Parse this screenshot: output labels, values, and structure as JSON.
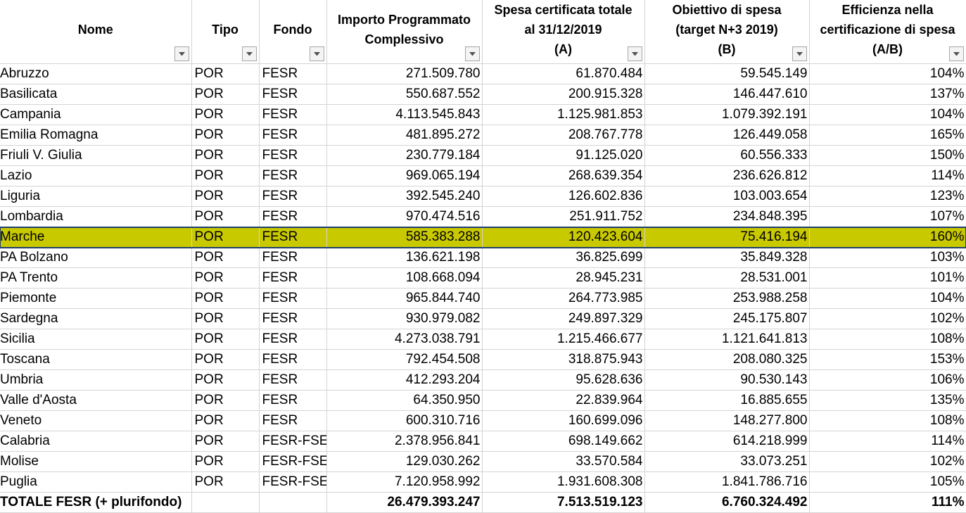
{
  "headers": {
    "nome": "Nome",
    "tipo": "Tipo",
    "fondo": "Fondo",
    "importo": "Importo Programmato\nComplessivo",
    "spesa": "Spesa certificata totale\nal 31/12/2019\n(A)",
    "obiettivo": "Obiettivo di spesa\n(target N+3 2019)\n(B)",
    "efficienza": "Efficienza nella\ncertificazione di spesa\n(A/B)"
  },
  "filter_icon": "dropdown-arrow-icon",
  "highlight_color": "#c9c900",
  "rows": [
    {
      "nome": "Abruzzo",
      "tipo": "POR",
      "fondo": "FESR",
      "importo": "271.509.780",
      "spesa": "61.870.484",
      "obiettivo": "59.545.149",
      "efficienza": "104%"
    },
    {
      "nome": "Basilicata",
      "tipo": "POR",
      "fondo": "FESR",
      "importo": "550.687.552",
      "spesa": "200.915.328",
      "obiettivo": "146.447.610",
      "efficienza": "137%"
    },
    {
      "nome": "Campania",
      "tipo": "POR",
      "fondo": "FESR",
      "importo": "4.113.545.843",
      "spesa": "1.125.981.853",
      "obiettivo": "1.079.392.191",
      "efficienza": "104%"
    },
    {
      "nome": "Emilia Romagna",
      "tipo": "POR",
      "fondo": "FESR",
      "importo": "481.895.272",
      "spesa": "208.767.778",
      "obiettivo": "126.449.058",
      "efficienza": "165%"
    },
    {
      "nome": "Friuli V. Giulia",
      "tipo": "POR",
      "fondo": "FESR",
      "importo": "230.779.184",
      "spesa": "91.125.020",
      "obiettivo": "60.556.333",
      "efficienza": "150%"
    },
    {
      "nome": "Lazio",
      "tipo": "POR",
      "fondo": "FESR",
      "importo": "969.065.194",
      "spesa": "268.639.354",
      "obiettivo": "236.626.812",
      "efficienza": "114%"
    },
    {
      "nome": "Liguria",
      "tipo": "POR",
      "fondo": "FESR",
      "importo": "392.545.240",
      "spesa": "126.602.836",
      "obiettivo": "103.003.654",
      "efficienza": "123%"
    },
    {
      "nome": "Lombardia",
      "tipo": "POR",
      "fondo": "FESR",
      "importo": "970.474.516",
      "spesa": "251.911.752",
      "obiettivo": "234.848.395",
      "efficienza": "107%"
    },
    {
      "nome": "Marche",
      "tipo": "POR",
      "fondo": "FESR",
      "importo": "585.383.288",
      "spesa": "120.423.604",
      "obiettivo": "75.416.194",
      "efficienza": "160%",
      "highlight": true
    },
    {
      "nome": "PA Bolzano",
      "tipo": "POR",
      "fondo": "FESR",
      "importo": "136.621.198",
      "spesa": "36.825.699",
      "obiettivo": "35.849.328",
      "efficienza": "103%"
    },
    {
      "nome": "PA Trento",
      "tipo": "POR",
      "fondo": "FESR",
      "importo": "108.668.094",
      "spesa": "28.945.231",
      "obiettivo": "28.531.001",
      "efficienza": "101%"
    },
    {
      "nome": "Piemonte",
      "tipo": "POR",
      "fondo": "FESR",
      "importo": "965.844.740",
      "spesa": "264.773.985",
      "obiettivo": "253.988.258",
      "efficienza": "104%"
    },
    {
      "nome": "Sardegna",
      "tipo": "POR",
      "fondo": "FESR",
      "importo": "930.979.082",
      "spesa": "249.897.329",
      "obiettivo": "245.175.807",
      "efficienza": "102%"
    },
    {
      "nome": "Sicilia",
      "tipo": "POR",
      "fondo": "FESR",
      "importo": "4.273.038.791",
      "spesa": "1.215.466.677",
      "obiettivo": "1.121.641.813",
      "efficienza": "108%"
    },
    {
      "nome": "Toscana",
      "tipo": "POR",
      "fondo": "FESR",
      "importo": "792.454.508",
      "spesa": "318.875.943",
      "obiettivo": "208.080.325",
      "efficienza": "153%"
    },
    {
      "nome": "Umbria",
      "tipo": "POR",
      "fondo": "FESR",
      "importo": "412.293.204",
      "spesa": "95.628.636",
      "obiettivo": "90.530.143",
      "efficienza": "106%"
    },
    {
      "nome": "Valle d'Aosta",
      "tipo": "POR",
      "fondo": "FESR",
      "importo": "64.350.950",
      "spesa": "22.839.964",
      "obiettivo": "16.885.655",
      "efficienza": "135%"
    },
    {
      "nome": "Veneto",
      "tipo": "POR",
      "fondo": "FESR",
      "importo": "600.310.716",
      "spesa": "160.699.096",
      "obiettivo": "148.277.800",
      "efficienza": "108%"
    },
    {
      "nome": "Calabria",
      "tipo": "POR",
      "fondo": "FESR-FSE",
      "importo": "2.378.956.841",
      "spesa": "698.149.662",
      "obiettivo": "614.218.999",
      "efficienza": "114%"
    },
    {
      "nome": "Molise",
      "tipo": "POR",
      "fondo": "FESR-FSE",
      "importo": "129.030.262",
      "spesa": "33.570.584",
      "obiettivo": "33.073.251",
      "efficienza": "102%"
    },
    {
      "nome": "Puglia",
      "tipo": "POR",
      "fondo": "FESR-FSE",
      "importo": "7.120.958.992",
      "spesa": "1.931.608.308",
      "obiettivo": "1.841.786.716",
      "efficienza": "105%"
    }
  ],
  "total": {
    "nome": "TOTALE FESR (+ plurifondo)",
    "tipo": "",
    "fondo": "",
    "importo": "26.479.393.247",
    "spesa": "7.513.519.123",
    "obiettivo": "6.760.324.492",
    "efficienza": "111%"
  }
}
